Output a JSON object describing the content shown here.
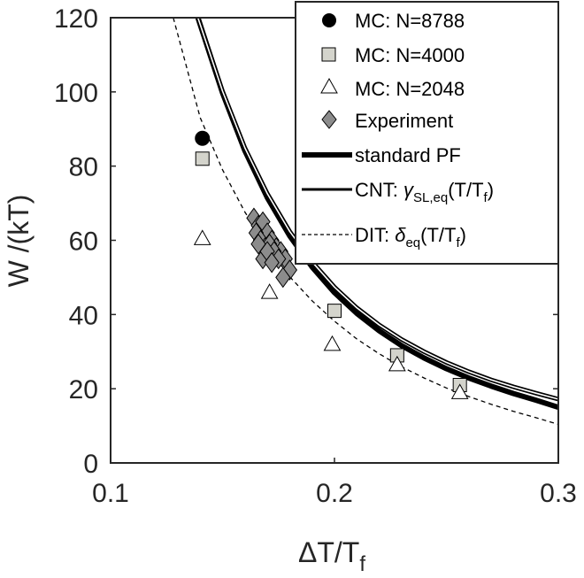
{
  "chart_data": {
    "type": "scatter",
    "title": "",
    "xlabel": "ΔT/T_f",
    "ylabel": "W /(kT)",
    "xlim": [
      0.1,
      0.3
    ],
    "ylim": [
      0,
      120
    ],
    "xticks": [
      0.1,
      0.2,
      0.3
    ],
    "xtick_labels": [
      "0.1",
      "0.2",
      "0.3"
    ],
    "yticks": [
      0,
      20,
      40,
      60,
      80,
      100,
      120
    ],
    "ytick_labels": [
      "0",
      "20",
      "40",
      "60",
      "80",
      "100",
      "120"
    ],
    "grid": false,
    "legend_position": "top-right",
    "series": [
      {
        "name": "MC: N=8788",
        "kind": "marker",
        "marker": "circle",
        "color": "#000000",
        "x": [
          0.141
        ],
        "y": [
          87.5
        ]
      },
      {
        "name": "MC: N=4000",
        "kind": "marker",
        "marker": "square",
        "color": "#d4d4cc",
        "x": [
          0.141,
          0.2,
          0.228,
          0.256
        ],
        "y": [
          82,
          41,
          29,
          21
        ]
      },
      {
        "name": "MC: N=2048",
        "kind": "marker",
        "marker": "triangle",
        "color": "#ffffff",
        "x": [
          0.141,
          0.171,
          0.199,
          0.228,
          0.256
        ],
        "y": [
          60.5,
          46,
          32,
          26.5,
          19
        ]
      },
      {
        "name": "Experiment",
        "kind": "marker",
        "marker": "diamond",
        "color": "#8c8c8c",
        "x": [
          0.164,
          0.166,
          0.168,
          0.17,
          0.172,
          0.174,
          0.176,
          0.178,
          0.18,
          0.165,
          0.167,
          0.169,
          0.171,
          0.173,
          0.175,
          0.177,
          0.166,
          0.168,
          0.17,
          0.172
        ],
        "y": [
          66,
          64,
          65,
          62,
          60,
          58,
          57,
          55,
          52,
          62,
          60,
          58,
          59,
          57,
          55,
          50,
          59,
          55,
          57,
          54
        ]
      },
      {
        "name": "standard PF",
        "kind": "line",
        "style": "thick",
        "color": "#000000",
        "x": [
          0.139,
          0.15,
          0.16,
          0.17,
          0.18,
          0.19,
          0.2,
          0.21,
          0.22,
          0.23,
          0.24,
          0.25,
          0.26,
          0.27,
          0.28,
          0.29,
          0.3
        ],
        "y": [
          120,
          99.7,
          84.1,
          71.5,
          61.2,
          52.8,
          45.9,
          40.3,
          35.6,
          31.6,
          28.3,
          25.4,
          22.9,
          20.7,
          18.7,
          16.9,
          15
        ]
      },
      {
        "name": "CNT: γ_SL,eq(T/T_f)",
        "kind": "line",
        "style": "double",
        "color": "#000000",
        "x": [
          0.139,
          0.15,
          0.16,
          0.17,
          0.18,
          0.19,
          0.2,
          0.21,
          0.22,
          0.23,
          0.24,
          0.25,
          0.26,
          0.27,
          0.28,
          0.29,
          0.3
        ],
        "y": [
          120,
          100.2,
          84.9,
          72.6,
          62.4,
          54.2,
          47.4,
          41.8,
          37.2,
          33.3,
          30,
          27.1,
          24.6,
          22.4,
          20.5,
          18.8,
          17.2
        ]
      },
      {
        "name": "DIT: δ_eq(T/T_f)",
        "kind": "line",
        "style": "dashed",
        "color": "#000000",
        "x": [
          0.128,
          0.14,
          0.15,
          0.16,
          0.17,
          0.18,
          0.19,
          0.2,
          0.21,
          0.22,
          0.23,
          0.24,
          0.25,
          0.26,
          0.27,
          0.28,
          0.29,
          0.3
        ],
        "y": [
          120,
          93.1,
          79,
          67.6,
          58.2,
          50.2,
          43.7,
          38.2,
          33.4,
          29.4,
          25.9,
          22.9,
          20.2,
          17.9,
          15.8,
          13.9,
          12.2,
          10.4
        ]
      }
    ]
  },
  "legend": {
    "items": [
      {
        "text": "MC: N=8788"
      },
      {
        "text": "MC: N=4000"
      },
      {
        "text": "MC: N=2048"
      },
      {
        "text": "Experiment"
      },
      {
        "text": "standard PF"
      },
      {
        "text": "CNT: ",
        "sym": "γ",
        "sub": "SL,eq",
        "rest": "(T/T",
        "sub2": "f",
        "tail": ")"
      },
      {
        "text": "DIT: ",
        "sym": "δ",
        "sub": "eq",
        "rest": "(T/T",
        "sub2": "f",
        "tail": ")"
      }
    ]
  },
  "axis_labels": {
    "x_main": "ΔT/T",
    "x_sub": "f",
    "y": "W /(kT)"
  }
}
